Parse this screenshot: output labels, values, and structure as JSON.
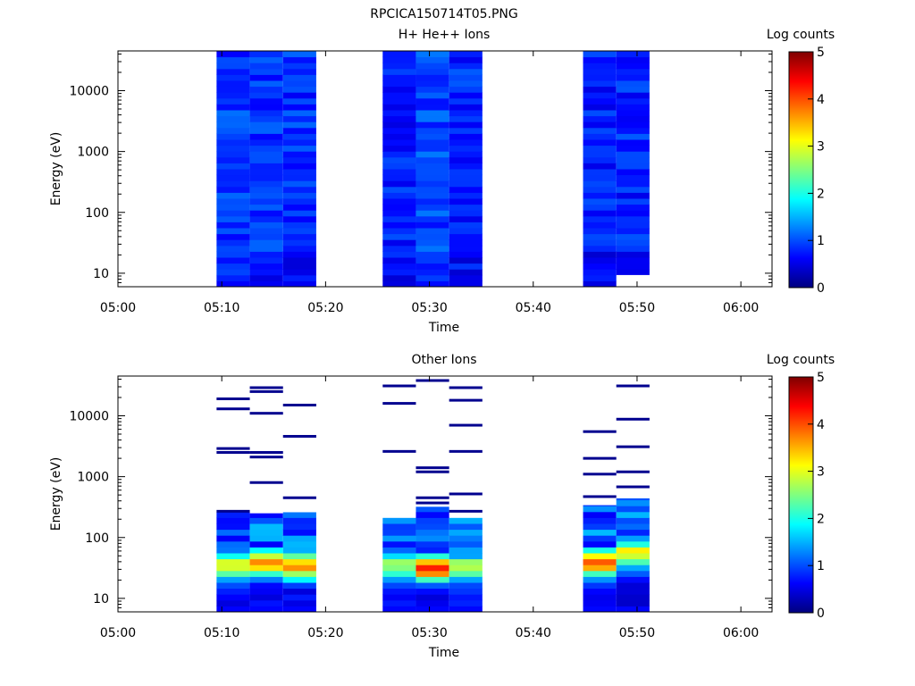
{
  "figure_title": "RPCICA150714T05.PNG",
  "colorbar": {
    "label": "Log counts",
    "ticks": [
      "0",
      "1",
      "2",
      "3",
      "4",
      "5"
    ],
    "range": [
      0,
      5
    ],
    "colormap": "jet"
  },
  "chart_data": [
    {
      "type": "heatmap",
      "title": "H+ He++ Ions",
      "xlabel": "Time",
      "ylabel": "Energy (eV)",
      "x_ticks": [
        "05:00",
        "05:10",
        "05:20",
        "05:30",
        "05:40",
        "05:50",
        "06:00"
      ],
      "xlim": [
        "05:00",
        "06:03"
      ],
      "y_ticks": [
        "10",
        "100",
        "1000",
        "10000"
      ],
      "ylim": [
        6,
        45000
      ],
      "y_scale": "log",
      "columns": [
        {
          "start": "05:09.5",
          "end": "05:12.7",
          "emin": 6,
          "emax": 45000,
          "log_counts_typical": 0.9
        },
        {
          "start": "05:12.7",
          "end": "05:15.9",
          "emin": 6,
          "emax": 45000,
          "log_counts_typical": 0.85
        },
        {
          "start": "05:15.9",
          "end": "05:19.1",
          "emin": 6,
          "emax": 45000,
          "log_counts_typical": 0.85
        },
        {
          "start": "05:25.5",
          "end": "05:28.7",
          "emin": 6,
          "emax": 45000,
          "log_counts_typical": 0.75
        },
        {
          "start": "05:28.7",
          "end": "05:31.9",
          "emin": 6,
          "emax": 45000,
          "log_counts_typical": 0.95
        },
        {
          "start": "05:31.9",
          "end": "05:35.1",
          "emin": 6,
          "emax": 45000,
          "log_counts_typical": 0.8
        },
        {
          "start": "05:44.8",
          "end": "05:48.0",
          "emin": 6,
          "emax": 45000,
          "log_counts_typical": 0.75
        },
        {
          "start": "05:48.0",
          "end": "05:51.2",
          "emin": 9.5,
          "emax": 45000,
          "log_counts_typical": 0.8
        }
      ]
    },
    {
      "type": "heatmap",
      "title": "Other Ions",
      "xlabel": "Time",
      "ylabel": "Energy (eV)",
      "x_ticks": [
        "05:00",
        "05:10",
        "05:20",
        "05:30",
        "05:40",
        "05:50",
        "06:00"
      ],
      "xlim": [
        "05:00",
        "06:03"
      ],
      "y_ticks": [
        "10",
        "100",
        "1000",
        "10000"
      ],
      "ylim": [
        6,
        45000
      ],
      "y_scale": "log",
      "columns": [
        {
          "start": "05:09.5",
          "end": "05:12.7",
          "dense_emax": 260,
          "peak_energy": 35,
          "peak_log_counts": 2.4,
          "sparse_lines_eV": [
            19000,
            13000,
            2900,
            2500,
            270
          ]
        },
        {
          "start": "05:12.7",
          "end": "05:15.9",
          "dense_emax": 250,
          "peak_energy": 38,
          "peak_log_counts": 3.2,
          "sparse_lines_eV": [
            29000,
            25000,
            11000,
            2500,
            2100,
            800
          ]
        },
        {
          "start": "05:15.9",
          "end": "05:19.1",
          "dense_emax": 260,
          "peak_energy": 35,
          "peak_log_counts": 3.1,
          "sparse_lines_eV": [
            15000,
            4600,
            450
          ]
        },
        {
          "start": "05:25.5",
          "end": "05:28.7",
          "dense_emax": 210,
          "peak_energy": 35,
          "peak_log_counts": 2.1,
          "sparse_lines_eV": [
            31000,
            16000,
            2600
          ]
        },
        {
          "start": "05:28.7",
          "end": "05:31.9",
          "dense_emax": 320,
          "peak_energy": 32,
          "peak_log_counts": 3.5,
          "sparse_lines_eV": [
            38000,
            1400,
            1200,
            450,
            370
          ]
        },
        {
          "start": "05:31.9",
          "end": "05:35.1",
          "dense_emax": 210,
          "peak_energy": 32,
          "peak_log_counts": 2.2,
          "sparse_lines_eV": [
            29000,
            18000,
            7000,
            2600,
            520,
            270
          ]
        },
        {
          "start": "05:44.8",
          "end": "05:48.0",
          "dense_emax": 340,
          "peak_energy": 40,
          "peak_log_counts": 3.3,
          "sparse_lines_eV": [
            5500,
            2000,
            1100,
            470
          ]
        },
        {
          "start": "05:48.0",
          "end": "05:51.2",
          "dense_emax": 440,
          "peak_energy": 55,
          "peak_log_counts": 2.6,
          "sparse_lines_eV": [
            31000,
            8800,
            3100,
            1200,
            680
          ]
        }
      ]
    }
  ]
}
